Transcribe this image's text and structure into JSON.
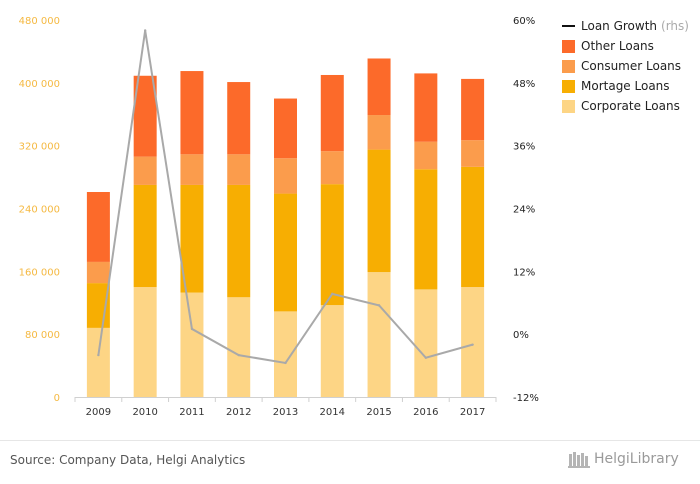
{
  "chart_data": {
    "type": "bar",
    "stacked": true,
    "categories": [
      "2009",
      "2010",
      "2011",
      "2012",
      "2013",
      "2014",
      "2015",
      "2016",
      "2017"
    ],
    "series": [
      {
        "name": "Corporate Loans",
        "color": "#fdd585",
        "values": [
          88000,
          140000,
          133000,
          127000,
          109000,
          117000,
          159000,
          137000,
          140000
        ]
      },
      {
        "name": "Mortage Loans",
        "color": "#f7ae02",
        "values": [
          57000,
          130000,
          137000,
          143000,
          150000,
          154000,
          156000,
          153000,
          153000
        ]
      },
      {
        "name": "Consumer Loans",
        "color": "#fb9c4c",
        "values": [
          27000,
          36000,
          39000,
          39000,
          45000,
          42000,
          44000,
          35000,
          34000
        ]
      },
      {
        "name": "Other Loans",
        "color": "#fc6a2a",
        "values": [
          89000,
          103000,
          106000,
          92000,
          76000,
          97000,
          72000,
          87000,
          78000
        ]
      }
    ],
    "line_series": {
      "name": "Loan Growth",
      "axis": "rhs",
      "color": "#a9a9a9",
      "values": [
        -4,
        58,
        1,
        -4,
        -5.5,
        7.7,
        5.5,
        -4.5,
        -2
      ]
    },
    "y_left": {
      "min": 0,
      "max": 480000,
      "ticks": [
        "0",
        "80 000",
        "160 000",
        "240 000",
        "320 000",
        "400 000",
        "480 000"
      ]
    },
    "y_right": {
      "min": -12,
      "max": 60,
      "ticks": [
        "-12%",
        "0%",
        "12%",
        "24%",
        "36%",
        "48%",
        "60%"
      ]
    },
    "legend": {
      "position": "top-right",
      "items": [
        {
          "label": "Loan Growth",
          "note": "(rhs)",
          "kind": "line",
          "color": "#111111"
        },
        {
          "label": "Other Loans",
          "kind": "box",
          "color": "#fc6a2a"
        },
        {
          "label": "Consumer Loans",
          "kind": "box",
          "color": "#fb9c4c"
        },
        {
          "label": "Mortage Loans",
          "kind": "box",
          "color": "#f7ae02"
        },
        {
          "label": "Corporate Loans",
          "kind": "box",
          "color": "#fdd585"
        }
      ]
    },
    "grid": false
  },
  "footer": {
    "source": "Source: Company Data, Helgi Analytics",
    "logo_text": "HelgiLibrary"
  }
}
